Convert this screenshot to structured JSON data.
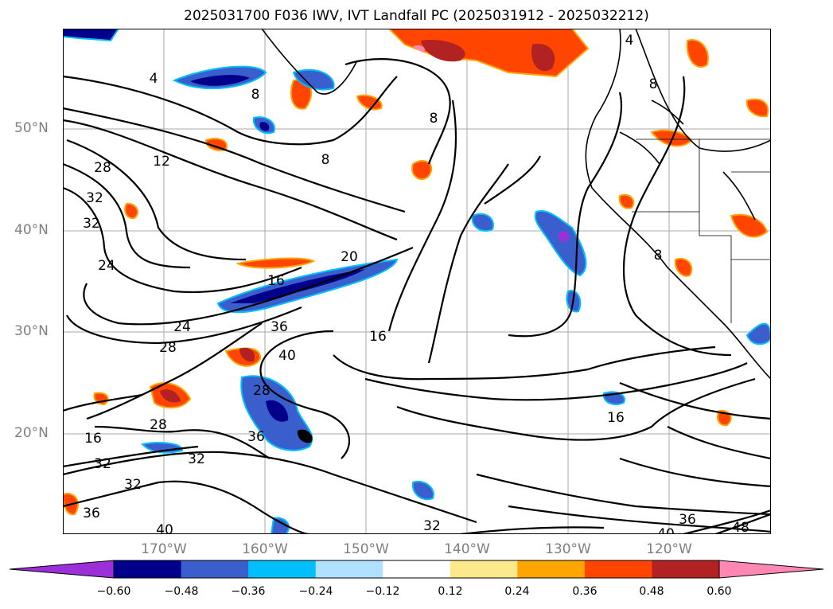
{
  "title": "2025031700 F036 IWV, IVT Landfall PC (2025031912 - 2025032212)",
  "latitude_labels": [
    "50°N",
    "40°N",
    "30°N",
    "20°N"
  ],
  "longitude_labels": [
    "170°W",
    "160°W",
    "150°W",
    "140°W",
    "130°W",
    "120°W"
  ],
  "colorbar": {
    "tick_labels": [
      "−0.60",
      "−0.48",
      "−0.36",
      "−0.24",
      "−0.12",
      "0.12",
      "0.24",
      "0.36",
      "0.48",
      "0.60"
    ],
    "colors": [
      "#9b30d9",
      "#00008b",
      "#3a5fcd",
      "#00bfff",
      "#b0e2ff",
      "#ffffff",
      "#fce98c",
      "#ffa500",
      "#ff4500",
      "#b22222",
      "#ff87b4"
    ]
  },
  "contour_labels": [
    "4",
    "8",
    "8",
    "8",
    "12",
    "28",
    "32",
    "32",
    "24",
    "20",
    "16",
    "16",
    "24",
    "28",
    "36",
    "40",
    "28",
    "28",
    "36",
    "32",
    "32",
    "32",
    "36",
    "40",
    "16",
    "16",
    "32",
    "40",
    "36",
    "48",
    "4",
    "8",
    "8"
  ]
}
